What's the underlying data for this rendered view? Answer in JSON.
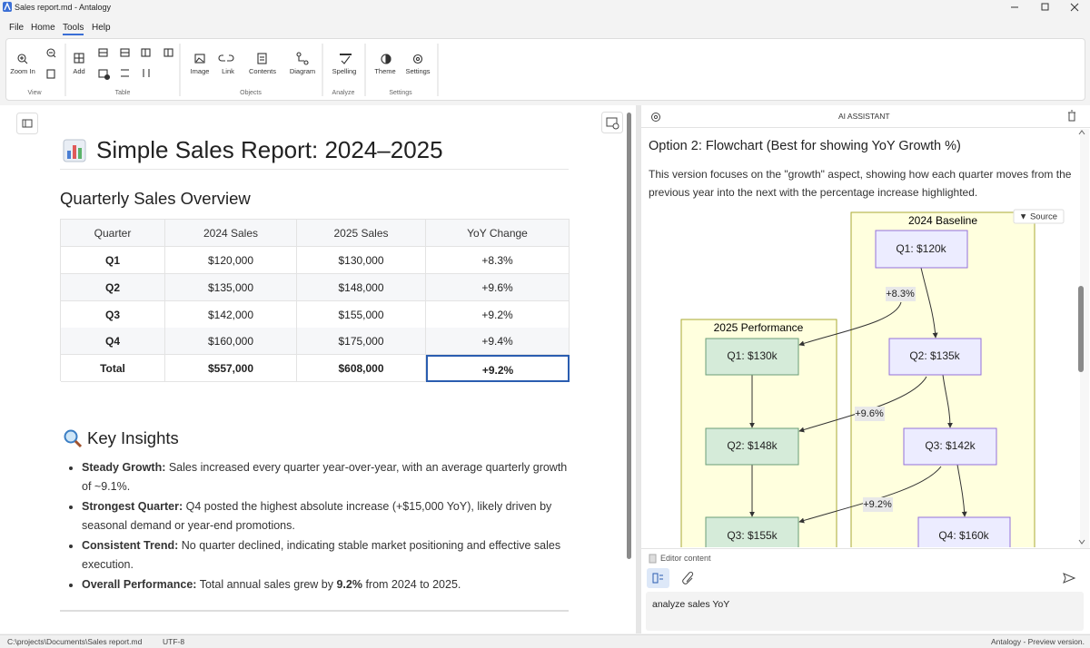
{
  "window": {
    "title": "Sales report.md - Antalogy"
  },
  "menu": [
    "File",
    "Home",
    "Tools",
    "Help"
  ],
  "ribbon": {
    "groups": [
      {
        "label": "View",
        "buttons": [
          "Zoom In"
        ]
      },
      {
        "label": "Table",
        "buttons": [
          "Add"
        ]
      },
      {
        "label": "Objects",
        "buttons": [
          "Image",
          "Link",
          "Contents",
          "Diagram"
        ]
      },
      {
        "label": "Analyze",
        "buttons": [
          "Spelling"
        ]
      },
      {
        "label": "Settings",
        "buttons": [
          "Theme",
          "Settings"
        ]
      }
    ]
  },
  "document": {
    "title": "Simple Sales Report: 2024–2025",
    "sections": [
      {
        "heading": "Quarterly Sales Overview",
        "table": {
          "header": [
            "Quarter",
            "2024 Sales",
            "2025 Sales",
            "YoY Change"
          ],
          "rows": [
            [
              "Q1",
              "$120,000",
              "$130,000",
              "+8.3%"
            ],
            [
              "Q2",
              "$135,000",
              "$148,000",
              "+9.6%"
            ],
            [
              "Q3",
              "$142,000",
              "$155,000",
              "+9.2%"
            ],
            [
              "Q4",
              "$160,000",
              "$175,000",
              "+9.4%"
            ],
            [
              "Total",
              "$557,000",
              "$608,000",
              "+9.2%"
            ]
          ]
        }
      },
      {
        "heading": "Key Insights",
        "bullets": [
          {
            "lead": "Steady Growth:",
            "text": " Sales increased every quarter year-over-year, with an average quarterly growth of ~9.1%."
          },
          {
            "lead": "Strongest Quarter:",
            "text": " Q4 posted the highest absolute increase (+$15,000 YoY), likely driven by seasonal demand or year-end promotions."
          },
          {
            "lead": "Consistent Trend:",
            "text": " No quarter declined, indicating stable market positioning and effective sales execution."
          },
          {
            "lead": "Overall Performance:",
            "text": " Total annual sales grew by ",
            "emphasis": "9.2%",
            "text_after": " from 2024 to 2025."
          }
        ]
      }
    ]
  },
  "assistant": {
    "header": "AI ASSISTANT",
    "heading": "Option 2: Flowchart (Best for showing YoY Growth %)",
    "paragraph": "This version focuses on the \"growth\" aspect, showing how each quarter moves from the previous year into the next with the percentage increase highlighted.",
    "diagram": {
      "source_button": "▼ Source",
      "groups": [
        "2024 Baseline",
        "2025 Performance"
      ],
      "nodes_2024": [
        "Q1: $120k",
        "Q2: $135k",
        "Q3: $142k",
        "Q4: $160k"
      ],
      "nodes_2025": [
        "Q1: $130k",
        "Q2: $148k",
        "Q3: $155k"
      ],
      "edge_labels": [
        "+8.3%",
        "+9.6%",
        "+9.2%"
      ]
    },
    "context_label": "Editor content",
    "input": "analyze sales YoY"
  },
  "status_bar": {
    "path": "C:\\projects\\Documents\\Sales report.md",
    "encoding": "UTF-8",
    "version": "Antalogy - Preview version."
  }
}
